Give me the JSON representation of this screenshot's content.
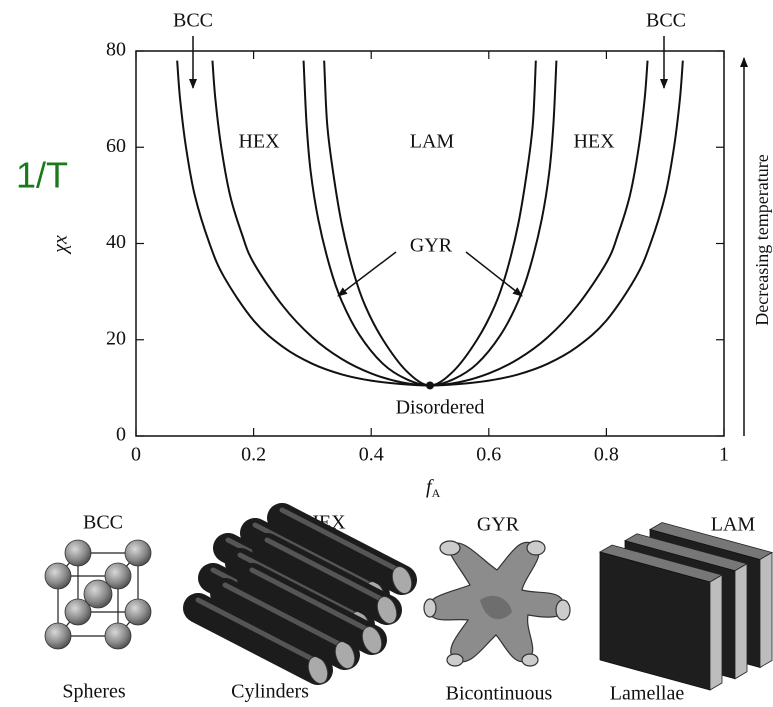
{
  "chart_data": {
    "type": "line",
    "x_label": "f",
    "x_label_sub": "A",
    "y_label": "χx",
    "xlim": [
      0,
      1
    ],
    "ylim": [
      0,
      80
    ],
    "xticks": [
      0,
      0.2,
      0.4,
      0.6,
      0.8,
      1
    ],
    "yticks": [
      0,
      20,
      40,
      60,
      80
    ],
    "grid": false,
    "series": [
      {
        "color": "#111111",
        "x": [
          0.07,
          0.075,
          0.085,
          0.1,
          0.125,
          0.15,
          0.2,
          0.25,
          0.3,
          0.35,
          0.4,
          0.45,
          0.5,
          0.55,
          0.6,
          0.65,
          0.7,
          0.75,
          0.8,
          0.85,
          0.875,
          0.9,
          0.915,
          0.925,
          0.93
        ],
        "values": [
          78,
          70,
          60,
          50,
          40,
          33,
          24,
          18.5,
          15,
          12.8,
          11.5,
          10.8,
          10.5,
          10.8,
          11.5,
          12.8,
          15,
          18.5,
          24,
          33,
          40,
          50,
          60,
          70,
          78
        ]
      },
      {
        "color": "#111111",
        "x": [
          0.13,
          0.135,
          0.145,
          0.16,
          0.18,
          0.2,
          0.25,
          0.3,
          0.35,
          0.4,
          0.45,
          0.5,
          0.55,
          0.6,
          0.65,
          0.7,
          0.75,
          0.8,
          0.82,
          0.84,
          0.855,
          0.865,
          0.87
        ],
        "values": [
          78,
          70,
          60,
          50,
          42,
          36,
          27,
          20.5,
          16,
          13,
          11.2,
          10.5,
          11.2,
          13,
          16,
          20.5,
          27,
          36,
          42,
          50,
          60,
          70,
          78
        ]
      },
      {
        "color": "#111111",
        "x": [
          0.285,
          0.29,
          0.297,
          0.31,
          0.33,
          0.35,
          0.38,
          0.42,
          0.46,
          0.5,
          0.54,
          0.58,
          0.62,
          0.65,
          0.67,
          0.69,
          0.703,
          0.71,
          0.715
        ],
        "values": [
          78,
          65,
          55,
          45,
          35,
          28,
          21,
          15,
          11.8,
          10.5,
          11.8,
          15,
          21,
          28,
          35,
          45,
          55,
          65,
          78
        ]
      },
      {
        "color": "#111111",
        "x": [
          0.32,
          0.325,
          0.335,
          0.35,
          0.37,
          0.39,
          0.42,
          0.46,
          0.5,
          0.54,
          0.58,
          0.61,
          0.63,
          0.65,
          0.665,
          0.675,
          0.68
        ],
        "values": [
          78,
          65,
          55,
          44,
          34,
          27,
          20,
          13.5,
          10.5,
          13.5,
          20,
          27,
          34,
          44,
          55,
          65,
          78
        ]
      }
    ],
    "critical_point": {
      "x": 0.5,
      "y": 10.5
    },
    "annotations": [
      "BCC",
      "BCC",
      "HEX",
      "LAM",
      "HEX",
      "GYR",
      "Disordered",
      "1/T",
      "Decreasing temperature"
    ]
  },
  "illustrations": [
    {
      "label": "BCC",
      "caption": "Spheres"
    },
    {
      "label": "HEX",
      "caption": "Cylinders"
    },
    {
      "label": "GYR",
      "caption": "Bicontinuous"
    },
    {
      "label": "LAM",
      "caption": "Lamellae"
    }
  ]
}
